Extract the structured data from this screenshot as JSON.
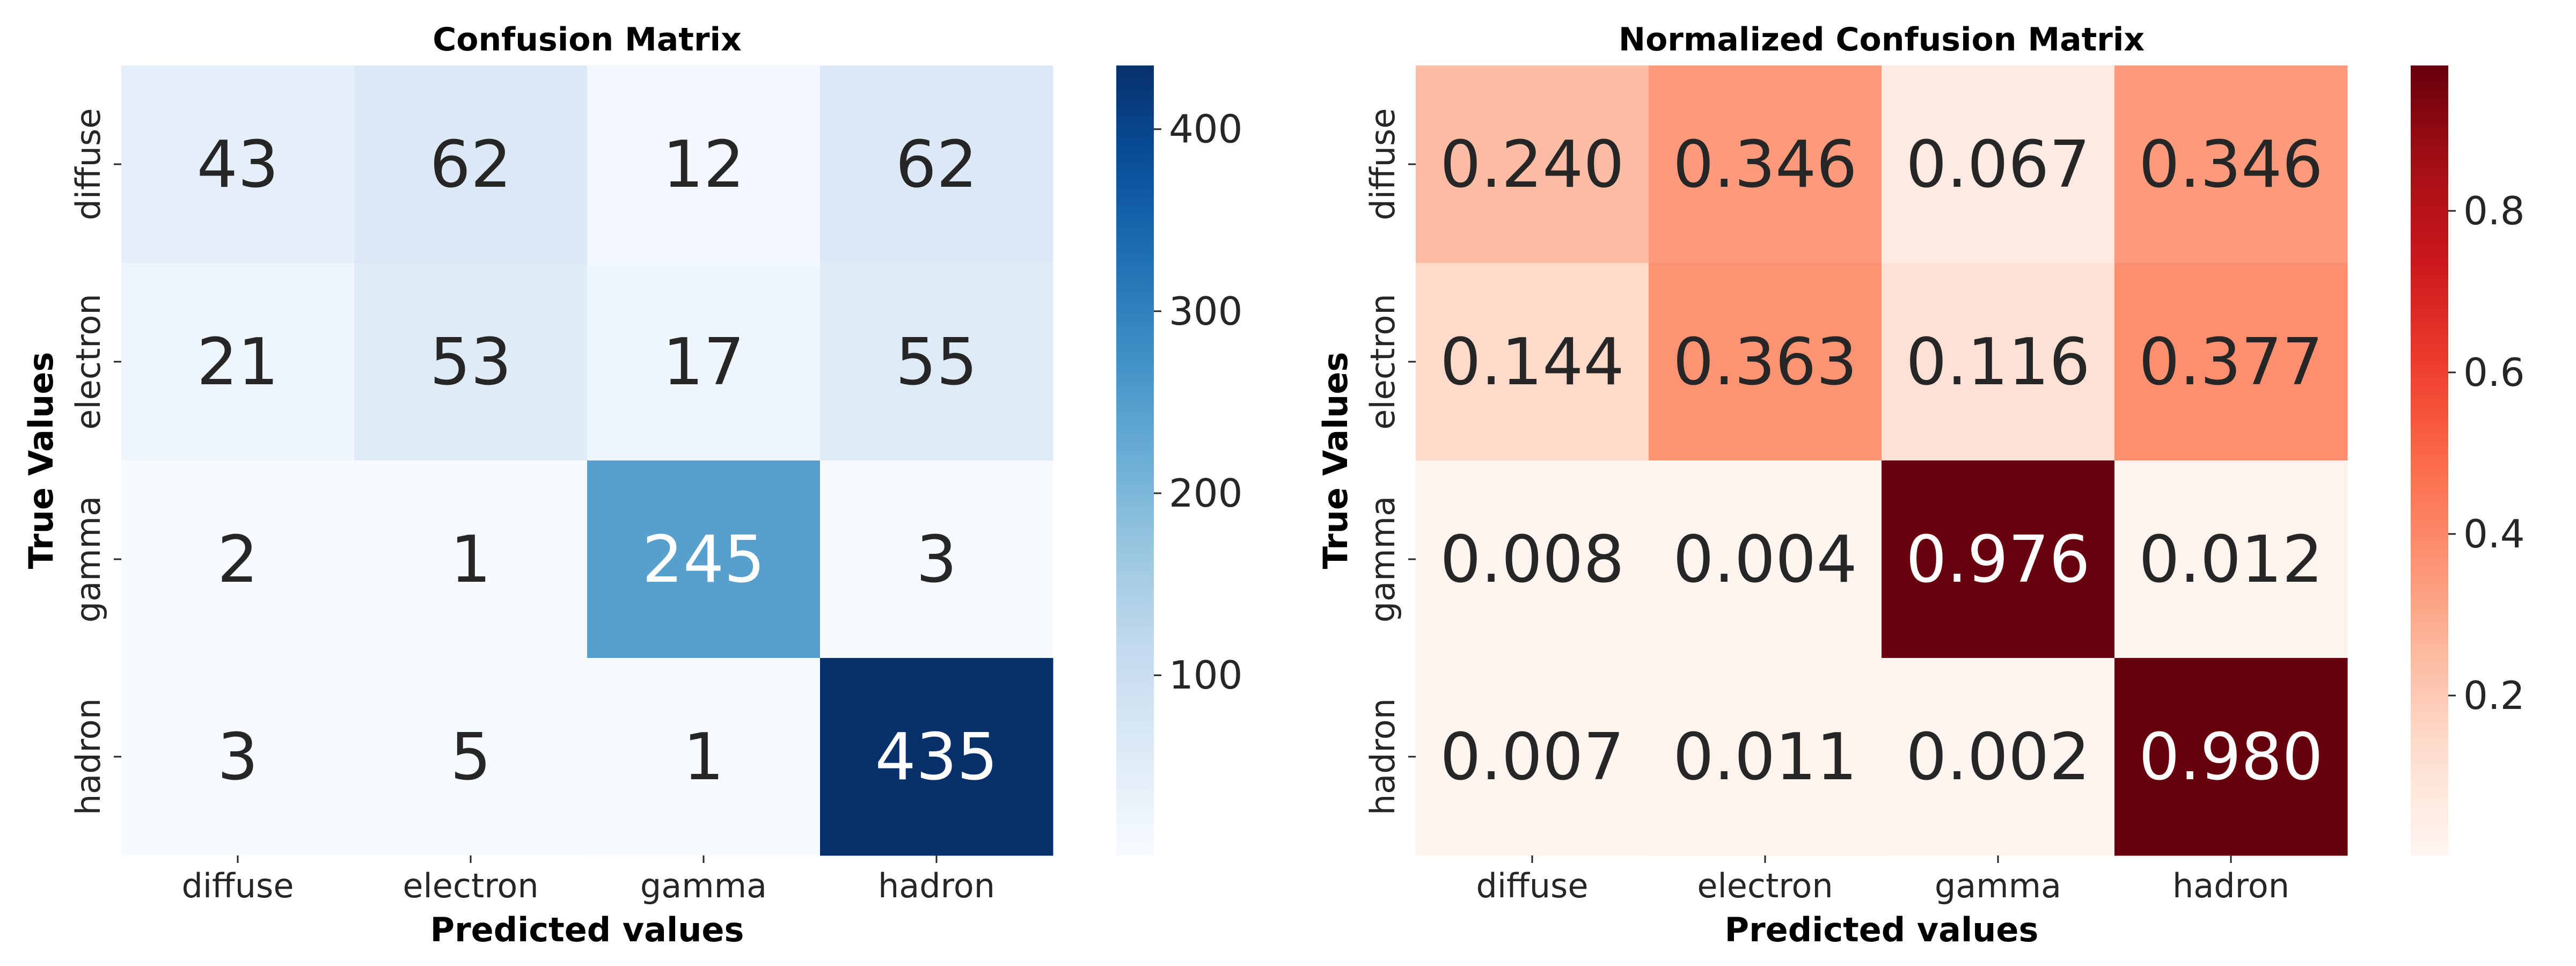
{
  "chart_data": [
    {
      "type": "heatmap",
      "title": "Confusion Matrix",
      "xlabel": "Predicted values",
      "ylabel": "True Values",
      "x_categories": [
        "diffuse",
        "electron",
        "gamma",
        "hadron"
      ],
      "y_categories": [
        "diffuse",
        "electron",
        "gamma",
        "hadron"
      ],
      "values": [
        [
          43,
          62,
          12,
          62
        ],
        [
          21,
          53,
          17,
          55
        ],
        [
          2,
          1,
          245,
          3
        ],
        [
          3,
          5,
          1,
          435
        ]
      ],
      "value_labels": [
        [
          "43",
          "62",
          "12",
          "62"
        ],
        [
          "21",
          "53",
          "17",
          "55"
        ],
        [
          "2",
          "1",
          "245",
          "3"
        ],
        [
          "3",
          "5",
          "1",
          "435"
        ]
      ],
      "colormap": "Blues",
      "color_range": [
        1,
        435
      ],
      "colorbar_ticks": [
        100,
        200,
        300,
        400
      ],
      "colorbar_tick_labels": [
        "100",
        "200",
        "300",
        "400"
      ]
    },
    {
      "type": "heatmap",
      "title": "Normalized Confusion Matrix",
      "xlabel": "Predicted values",
      "ylabel": "True Values",
      "x_categories": [
        "diffuse",
        "electron",
        "gamma",
        "hadron"
      ],
      "y_categories": [
        "diffuse",
        "electron",
        "gamma",
        "hadron"
      ],
      "values": [
        [
          0.24,
          0.346,
          0.067,
          0.346
        ],
        [
          0.144,
          0.363,
          0.116,
          0.377
        ],
        [
          0.008,
          0.004,
          0.976,
          0.012
        ],
        [
          0.007,
          0.011,
          0.002,
          0.98
        ]
      ],
      "value_labels": [
        [
          "0.240",
          "0.346",
          "0.067",
          "0.346"
        ],
        [
          "0.144",
          "0.363",
          "0.116",
          "0.377"
        ],
        [
          "0.008",
          "0.004",
          "0.976",
          "0.012"
        ],
        [
          "0.007",
          "0.011",
          "0.002",
          "0.980"
        ]
      ],
      "colormap": "Reds",
      "color_range": [
        0.002,
        0.98
      ],
      "colorbar_ticks": [
        0.2,
        0.4,
        0.6,
        0.8
      ],
      "colorbar_tick_labels": [
        "0.2",
        "0.4",
        "0.6",
        "0.8"
      ]
    }
  ]
}
